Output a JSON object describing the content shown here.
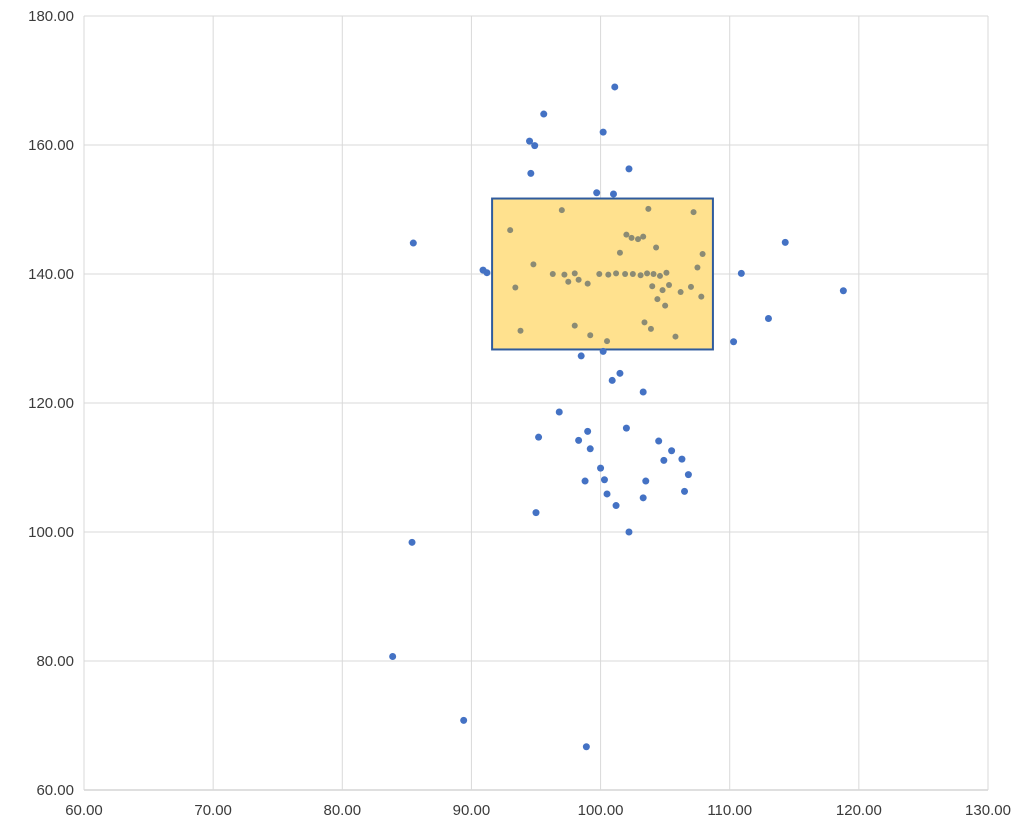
{
  "chart_data": {
    "type": "scatter",
    "title": "",
    "xlabel": "",
    "ylabel": "",
    "grid": true,
    "background": "#FFFFFF",
    "colors": {
      "gridline": "#D9D9D9",
      "axis_line": "#BFBFBF",
      "tick_text": "#3B3B3B"
    },
    "x_axis": {
      "min": 60,
      "max": 130,
      "ticks": [
        {
          "v": 60,
          "label": "60.00"
        },
        {
          "v": 70,
          "label": "70.00"
        },
        {
          "v": 80,
          "label": "80.00"
        },
        {
          "v": 90,
          "label": "90.00"
        },
        {
          "v": 100,
          "label": "100.00"
        },
        {
          "v": 110,
          "label": "110.00"
        },
        {
          "v": 120,
          "label": "120.00"
        },
        {
          "v": 130,
          "label": "130.00"
        }
      ]
    },
    "y_axis": {
      "min": 60,
      "max": 180,
      "ticks": [
        {
          "v": 60,
          "label": "60.00"
        },
        {
          "v": 80,
          "label": "80.00"
        },
        {
          "v": 100,
          "label": "100.00"
        },
        {
          "v": 120,
          "label": "120.00"
        },
        {
          "v": 140,
          "label": "140.00"
        },
        {
          "v": 160,
          "label": "160.00"
        },
        {
          "v": 180,
          "label": "180.00"
        }
      ]
    },
    "highlight_box": {
      "x_min": 91.6,
      "x_max": 108.7,
      "y_min": 128.3,
      "y_max": 151.7,
      "fill": "#FFE18E",
      "stroke": "#2F5B9D",
      "stroke_width": 2
    },
    "series": [
      {
        "name": "points-outside-selection",
        "color": "#4472C4",
        "radius": 3.5,
        "points": [
          [
            101.1,
            169.0
          ],
          [
            95.6,
            164.8
          ],
          [
            100.2,
            162.0
          ],
          [
            94.5,
            160.6
          ],
          [
            94.9,
            159.9
          ],
          [
            102.2,
            156.3
          ],
          [
            94.6,
            155.6
          ],
          [
            99.7,
            152.6
          ],
          [
            101.0,
            152.4
          ],
          [
            85.5,
            144.8
          ],
          [
            114.3,
            144.9
          ],
          [
            90.9,
            140.6
          ],
          [
            91.2,
            140.2
          ],
          [
            110.9,
            140.1
          ],
          [
            118.8,
            137.4
          ],
          [
            113.0,
            133.1
          ],
          [
            110.3,
            129.5
          ],
          [
            98.5,
            127.3
          ],
          [
            100.2,
            128.0
          ],
          [
            101.5,
            124.6
          ],
          [
            100.9,
            123.5
          ],
          [
            103.3,
            121.7
          ],
          [
            96.8,
            118.6
          ],
          [
            102.0,
            116.1
          ],
          [
            95.2,
            114.7
          ],
          [
            99.0,
            115.6
          ],
          [
            98.3,
            114.2
          ],
          [
            104.5,
            114.1
          ],
          [
            105.5,
            112.6
          ],
          [
            99.2,
            112.9
          ],
          [
            104.9,
            111.1
          ],
          [
            106.3,
            111.3
          ],
          [
            100.0,
            109.9
          ],
          [
            106.8,
            108.9
          ],
          [
            100.3,
            108.1
          ],
          [
            98.8,
            107.9
          ],
          [
            103.5,
            107.9
          ],
          [
            100.5,
            105.9
          ],
          [
            103.3,
            105.3
          ],
          [
            106.5,
            106.3
          ],
          [
            101.2,
            104.1
          ],
          [
            95.0,
            103.0
          ],
          [
            102.2,
            100.0
          ],
          [
            85.4,
            98.4
          ],
          [
            83.9,
            80.7
          ],
          [
            89.4,
            70.8
          ],
          [
            98.9,
            66.7
          ]
        ]
      },
      {
        "name": "points-inside-selection",
        "color": "#8B8B74",
        "radius": 3,
        "points": [
          [
            93.0,
            146.8
          ],
          [
            97.0,
            149.9
          ],
          [
            103.7,
            150.1
          ],
          [
            107.2,
            149.6
          ],
          [
            102.0,
            146.1
          ],
          [
            102.4,
            145.6
          ],
          [
            102.9,
            145.4
          ],
          [
            103.3,
            145.8
          ],
          [
            104.3,
            144.1
          ],
          [
            101.5,
            143.3
          ],
          [
            107.9,
            143.1
          ],
          [
            94.8,
            141.5
          ],
          [
            96.3,
            140.0
          ],
          [
            97.2,
            139.9
          ],
          [
            98.0,
            140.1
          ],
          [
            99.9,
            140.0
          ],
          [
            100.6,
            139.9
          ],
          [
            101.2,
            140.1
          ],
          [
            101.9,
            140.0
          ],
          [
            102.5,
            140.0
          ],
          [
            103.1,
            139.8
          ],
          [
            103.6,
            140.1
          ],
          [
            104.1,
            140.0
          ],
          [
            104.6,
            139.7
          ],
          [
            105.1,
            140.2
          ],
          [
            107.5,
            141.0
          ],
          [
            93.4,
            137.9
          ],
          [
            97.5,
            138.8
          ],
          [
            98.3,
            139.1
          ],
          [
            99.0,
            138.5
          ],
          [
            104.0,
            138.1
          ],
          [
            104.8,
            137.5
          ],
          [
            105.3,
            138.3
          ],
          [
            106.2,
            137.2
          ],
          [
            107.0,
            138.0
          ],
          [
            104.4,
            136.1
          ],
          [
            105.0,
            135.1
          ],
          [
            93.8,
            131.2
          ],
          [
            98.0,
            132.0
          ],
          [
            99.2,
            130.5
          ],
          [
            103.4,
            132.5
          ],
          [
            103.9,
            131.5
          ],
          [
            105.8,
            130.3
          ],
          [
            107.8,
            136.5
          ],
          [
            100.5,
            129.6
          ]
        ]
      }
    ]
  }
}
